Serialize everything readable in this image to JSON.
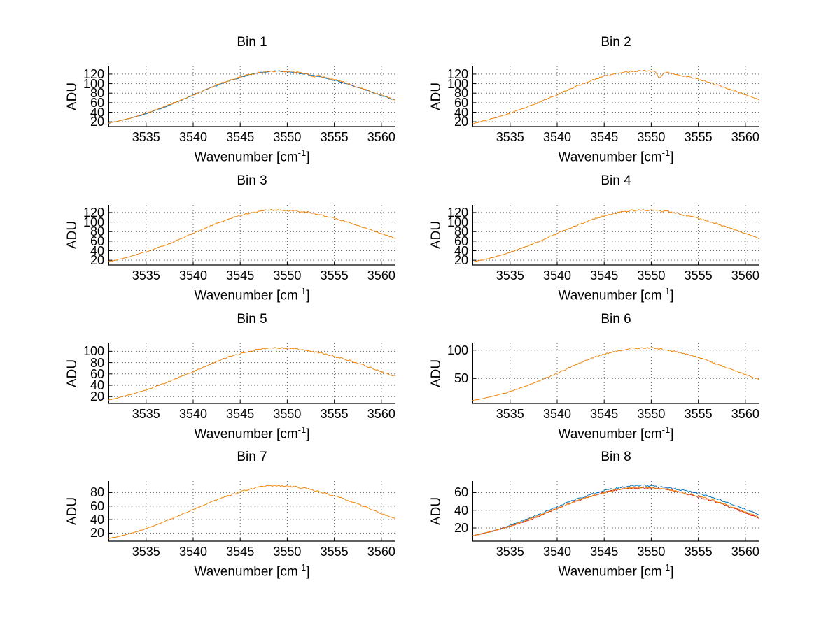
{
  "figure": {
    "background": "#ffffff"
  },
  "ylabel": "ADU",
  "xlabel": {
    "text": "Wavenumber [cm",
    "sup": "-1",
    "suffix": "]"
  },
  "axis_style": {
    "axis_color": "#000000",
    "grid_color": "#6a6a6a",
    "line_colors": {
      "blue": "#0072bd",
      "red": "#d0291a",
      "orange": "#f08408"
    }
  },
  "anchor_x": [
    3531,
    3533,
    3535,
    3537.5,
    3540,
    3542.5,
    3545,
    3547.5,
    3549,
    3550.5,
    3552,
    3555,
    3557.5,
    3560,
    3561.5
  ],
  "chart_data": [
    {
      "type": "line",
      "title": "Bin 1",
      "xlim": [
        3531,
        3561.5
      ],
      "ylim": [
        10,
        136
      ],
      "xticks": [
        3535,
        3540,
        3545,
        3550,
        3555,
        3560
      ],
      "yticks": [
        20,
        40,
        60,
        80,
        100,
        120
      ],
      "series": [
        {
          "name": "blue",
          "color_key": "blue",
          "seed": 7,
          "noise": 1.3,
          "y": [
            17,
            26,
            37,
            55,
            76,
            96,
            113,
            124,
            126,
            124,
            120,
            107,
            92,
            75,
            65
          ]
        },
        {
          "name": "orange",
          "color_key": "orange",
          "seed": 11,
          "noise": 1.7,
          "y": [
            17,
            26,
            38,
            56,
            76,
            97,
            114,
            124,
            126,
            125,
            121,
            109,
            93,
            76,
            66
          ],
          "dips": [
            {
              "x": 3552.8,
              "depth": 5,
              "width": 0.2
            }
          ]
        }
      ]
    },
    {
      "type": "line",
      "title": "Bin 2",
      "xlim": [
        3531,
        3561.5
      ],
      "ylim": [
        10,
        136
      ],
      "xticks": [
        3535,
        3540,
        3545,
        3550,
        3555,
        3560
      ],
      "yticks": [
        20,
        40,
        60,
        80,
        100,
        120
      ],
      "series": [
        {
          "name": "orange",
          "color_key": "orange",
          "seed": 23,
          "noise": 1.7,
          "y": [
            16,
            26,
            38,
            56,
            77,
            98,
            115,
            125,
            127,
            126,
            122,
            109,
            94,
            77,
            66
          ],
          "dips": [
            {
              "x": 3550.9,
              "depth": 13,
              "width": 0.22
            }
          ]
        }
      ]
    },
    {
      "type": "line",
      "title": "Bin 3",
      "xlim": [
        3531,
        3561.5
      ],
      "ylim": [
        10,
        136
      ],
      "xticks": [
        3535,
        3540,
        3545,
        3550,
        3555,
        3560
      ],
      "yticks": [
        20,
        40,
        60,
        80,
        100,
        120
      ],
      "series": [
        {
          "name": "orange",
          "color_key": "orange",
          "seed": 31,
          "noise": 1.7,
          "y": [
            17,
            26,
            38,
            55,
            76,
            97,
            114,
            124,
            125,
            124,
            121,
            108,
            93,
            76,
            66
          ]
        }
      ]
    },
    {
      "type": "line",
      "title": "Bin 4",
      "xlim": [
        3531,
        3561.5
      ],
      "ylim": [
        10,
        136
      ],
      "xticks": [
        3535,
        3540,
        3545,
        3550,
        3555,
        3560
      ],
      "yticks": [
        20,
        40,
        60,
        80,
        100,
        120
      ],
      "series": [
        {
          "name": "orange",
          "color_key": "orange",
          "seed": 41,
          "noise": 1.8,
          "y": [
            16,
            25,
            37,
            55,
            76,
            96,
            113,
            123,
            125,
            124,
            121,
            108,
            93,
            76,
            65
          ]
        }
      ]
    },
    {
      "type": "line",
      "title": "Bin 5",
      "xlim": [
        3531,
        3561.5
      ],
      "ylim": [
        8,
        114
      ],
      "xticks": [
        3535,
        3540,
        3545,
        3550,
        3555,
        3560
      ],
      "yticks": [
        20,
        40,
        60,
        80,
        100
      ],
      "series": [
        {
          "name": "orange",
          "color_key": "orange",
          "seed": 53,
          "noise": 1.5,
          "y": [
            14,
            22,
            32,
            47,
            64,
            82,
            96,
            105,
            106,
            105,
            102,
            91,
            79,
            64,
            56
          ]
        }
      ]
    },
    {
      "type": "line",
      "title": "Bin 6",
      "xlim": [
        3531,
        3561.5
      ],
      "ylim": [
        6,
        112
      ],
      "xticks": [
        3535,
        3540,
        3545,
        3550,
        3555,
        3560
      ],
      "yticks": [
        50,
        100
      ],
      "series": [
        {
          "name": "orange",
          "color_key": "orange",
          "seed": 61,
          "noise": 1.4,
          "y": [
            11,
            18,
            27,
            42,
            59,
            78,
            93,
            102,
            104,
            103,
            99,
            87,
            72,
            57,
            48
          ]
        }
      ]
    },
    {
      "type": "line",
      "title": "Bin 7",
      "xlim": [
        3531,
        3561.5
      ],
      "ylim": [
        8,
        97
      ],
      "xticks": [
        3535,
        3540,
        3545,
        3550,
        3555,
        3560
      ],
      "yticks": [
        20,
        40,
        60,
        80
      ],
      "series": [
        {
          "name": "orange",
          "color_key": "orange",
          "seed": 71,
          "noise": 1.3,
          "y": [
            12,
            18,
            27,
            40,
            55,
            69,
            81,
            89,
            90,
            89,
            86,
            75,
            63,
            49,
            41
          ]
        }
      ]
    },
    {
      "type": "line",
      "title": "Bin 8",
      "xlim": [
        3531,
        3561.5
      ],
      "ylim": [
        5,
        73
      ],
      "xticks": [
        3535,
        3540,
        3545,
        3550,
        3555,
        3560
      ],
      "yticks": [
        20,
        40,
        60
      ],
      "series": [
        {
          "name": "blue",
          "color_key": "blue",
          "seed": 83,
          "noise": 1.0,
          "y": [
            11,
            16,
            23,
            33,
            44,
            54,
            62,
            67,
            68,
            67,
            65,
            59,
            51,
            41,
            35
          ]
        },
        {
          "name": "red",
          "color_key": "red",
          "seed": 89,
          "noise": 1.0,
          "y": [
            11,
            16,
            22,
            31,
            42,
            52,
            60,
            65,
            65,
            65,
            63,
            55,
            47,
            37,
            31
          ]
        },
        {
          "name": "orange",
          "color_key": "orange",
          "seed": 97,
          "noise": 1.0,
          "y": [
            11,
            16,
            22,
            32,
            42,
            52,
            60,
            65,
            66,
            65,
            63,
            56,
            48,
            38,
            32
          ]
        }
      ]
    }
  ]
}
